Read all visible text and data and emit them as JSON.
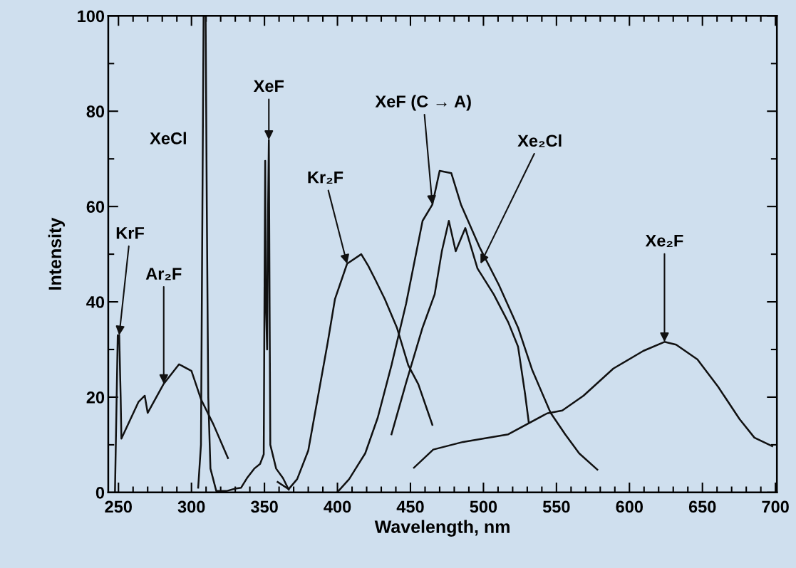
{
  "chart_data": {
    "type": "line",
    "xlabel": "Wavelength, nm",
    "ylabel": "Intensity",
    "xlim": [
      243,
      701
    ],
    "xticks": [
      250,
      300,
      350,
      400,
      450,
      500,
      550,
      600,
      650,
      700
    ],
    "ylim": [
      0,
      100
    ],
    "yticks": [
      0,
      20,
      40,
      60,
      80,
      100
    ],
    "grid": false,
    "legend": false,
    "marker": "none",
    "line_style": "solid",
    "series": [
      {
        "color": "#111111",
        "x": [
          247.6,
          249.5,
          250.5,
          251.5,
          252,
          263.7,
          268,
          270,
          281,
          291.5,
          300,
          306.6,
          315,
          325
        ],
        "values": [
          0,
          33,
          33,
          20,
          11.3,
          19,
          20.3,
          16.7,
          22.8,
          26.9,
          25.5,
          19.5,
          14.3,
          7.2
        ]
      },
      {
        "color": "#111111",
        "x": [
          304.6,
          306.5,
          307.5,
          308.3,
          309.7,
          310.5,
          311.5,
          313,
          317,
          324,
          330,
          334,
          338,
          343,
          347,
          349.5,
          350,
          350.5,
          351,
          351.8,
          352.5,
          353,
          353.5,
          354,
          358,
          362.7,
          366.6
        ],
        "values": [
          1,
          10,
          60,
          100,
          100,
          60,
          20,
          5,
          0.3,
          0.3,
          0.8,
          1,
          3,
          5,
          6,
          8,
          40,
          69.6,
          40,
          30,
          60,
          74,
          40,
          10,
          5,
          3,
          0.6
        ]
      },
      {
        "color": "#111111",
        "x": [
          359,
          366.6,
          372.4,
          380,
          387,
          393.4,
          398.3,
          406.6,
          416.3,
          421,
          426,
          432.4,
          440.7,
          448.5,
          455.4,
          465
        ],
        "values": [
          2.2,
          0.7,
          2.8,
          8.8,
          20.7,
          31.6,
          40.6,
          48,
          50,
          47.6,
          44.6,
          40.6,
          34.6,
          26.7,
          22.7,
          14.2
        ]
      },
      {
        "color": "#111111",
        "x": [
          399.8,
          408,
          419,
          427.6,
          437,
          447,
          458.3,
          465,
          470,
          478,
          484.6,
          497.3,
          510.5,
          523.7,
          533.4,
          546,
          556,
          565.6,
          578
        ],
        "values": [
          0,
          2.8,
          8.2,
          15.7,
          26.7,
          39.6,
          57,
          60.4,
          67.5,
          67,
          60.4,
          51.5,
          43.6,
          34.6,
          25.7,
          16.7,
          12.2,
          8.2,
          4.8
        ]
      },
      {
        "color": "#111111",
        "x": [
          437,
          447,
          458.3,
          466.6,
          471.5,
          476.3,
          481,
          487.6,
          495.9,
          507,
          517,
          523.7,
          528.5,
          531
        ],
        "values": [
          12.2,
          23,
          34.6,
          41.6,
          50.6,
          57,
          50.6,
          55.5,
          47,
          41.6,
          35.7,
          30.6,
          20.7,
          14.8
        ]
      },
      {
        "color": "#111111",
        "x": [
          452.4,
          465.6,
          486,
          517,
          543.6,
          554,
          568.5,
          589,
          609.5,
          624,
          632,
          646.6,
          660.7,
          675.4,
          685.6,
          697.8
        ],
        "values": [
          5.2,
          9,
          10.6,
          12.2,
          16.6,
          17.2,
          20.3,
          26,
          29.7,
          31.6,
          31,
          27.9,
          22.2,
          15.4,
          11.5,
          9.7
        ]
      }
    ],
    "annotations": [
      {
        "text": "KrF",
        "x": 250.5,
        "y": 33
      },
      {
        "text": "Ar₂F",
        "x": 281,
        "y": 22.8
      },
      "XeCl",
      {
        "text": "XeF",
        "x": 353,
        "y": 74
      },
      {
        "text": "Kr₂F",
        "x": 406.6,
        "y": 48
      },
      {
        "text": "XeF (C → A)",
        "x": 465,
        "y": 60.4
      },
      {
        "text": "Xe₂Cl",
        "x": 498,
        "y": 48
      },
      {
        "text": "Xe₂F",
        "x": 624,
        "y": 31.6
      }
    ]
  }
}
